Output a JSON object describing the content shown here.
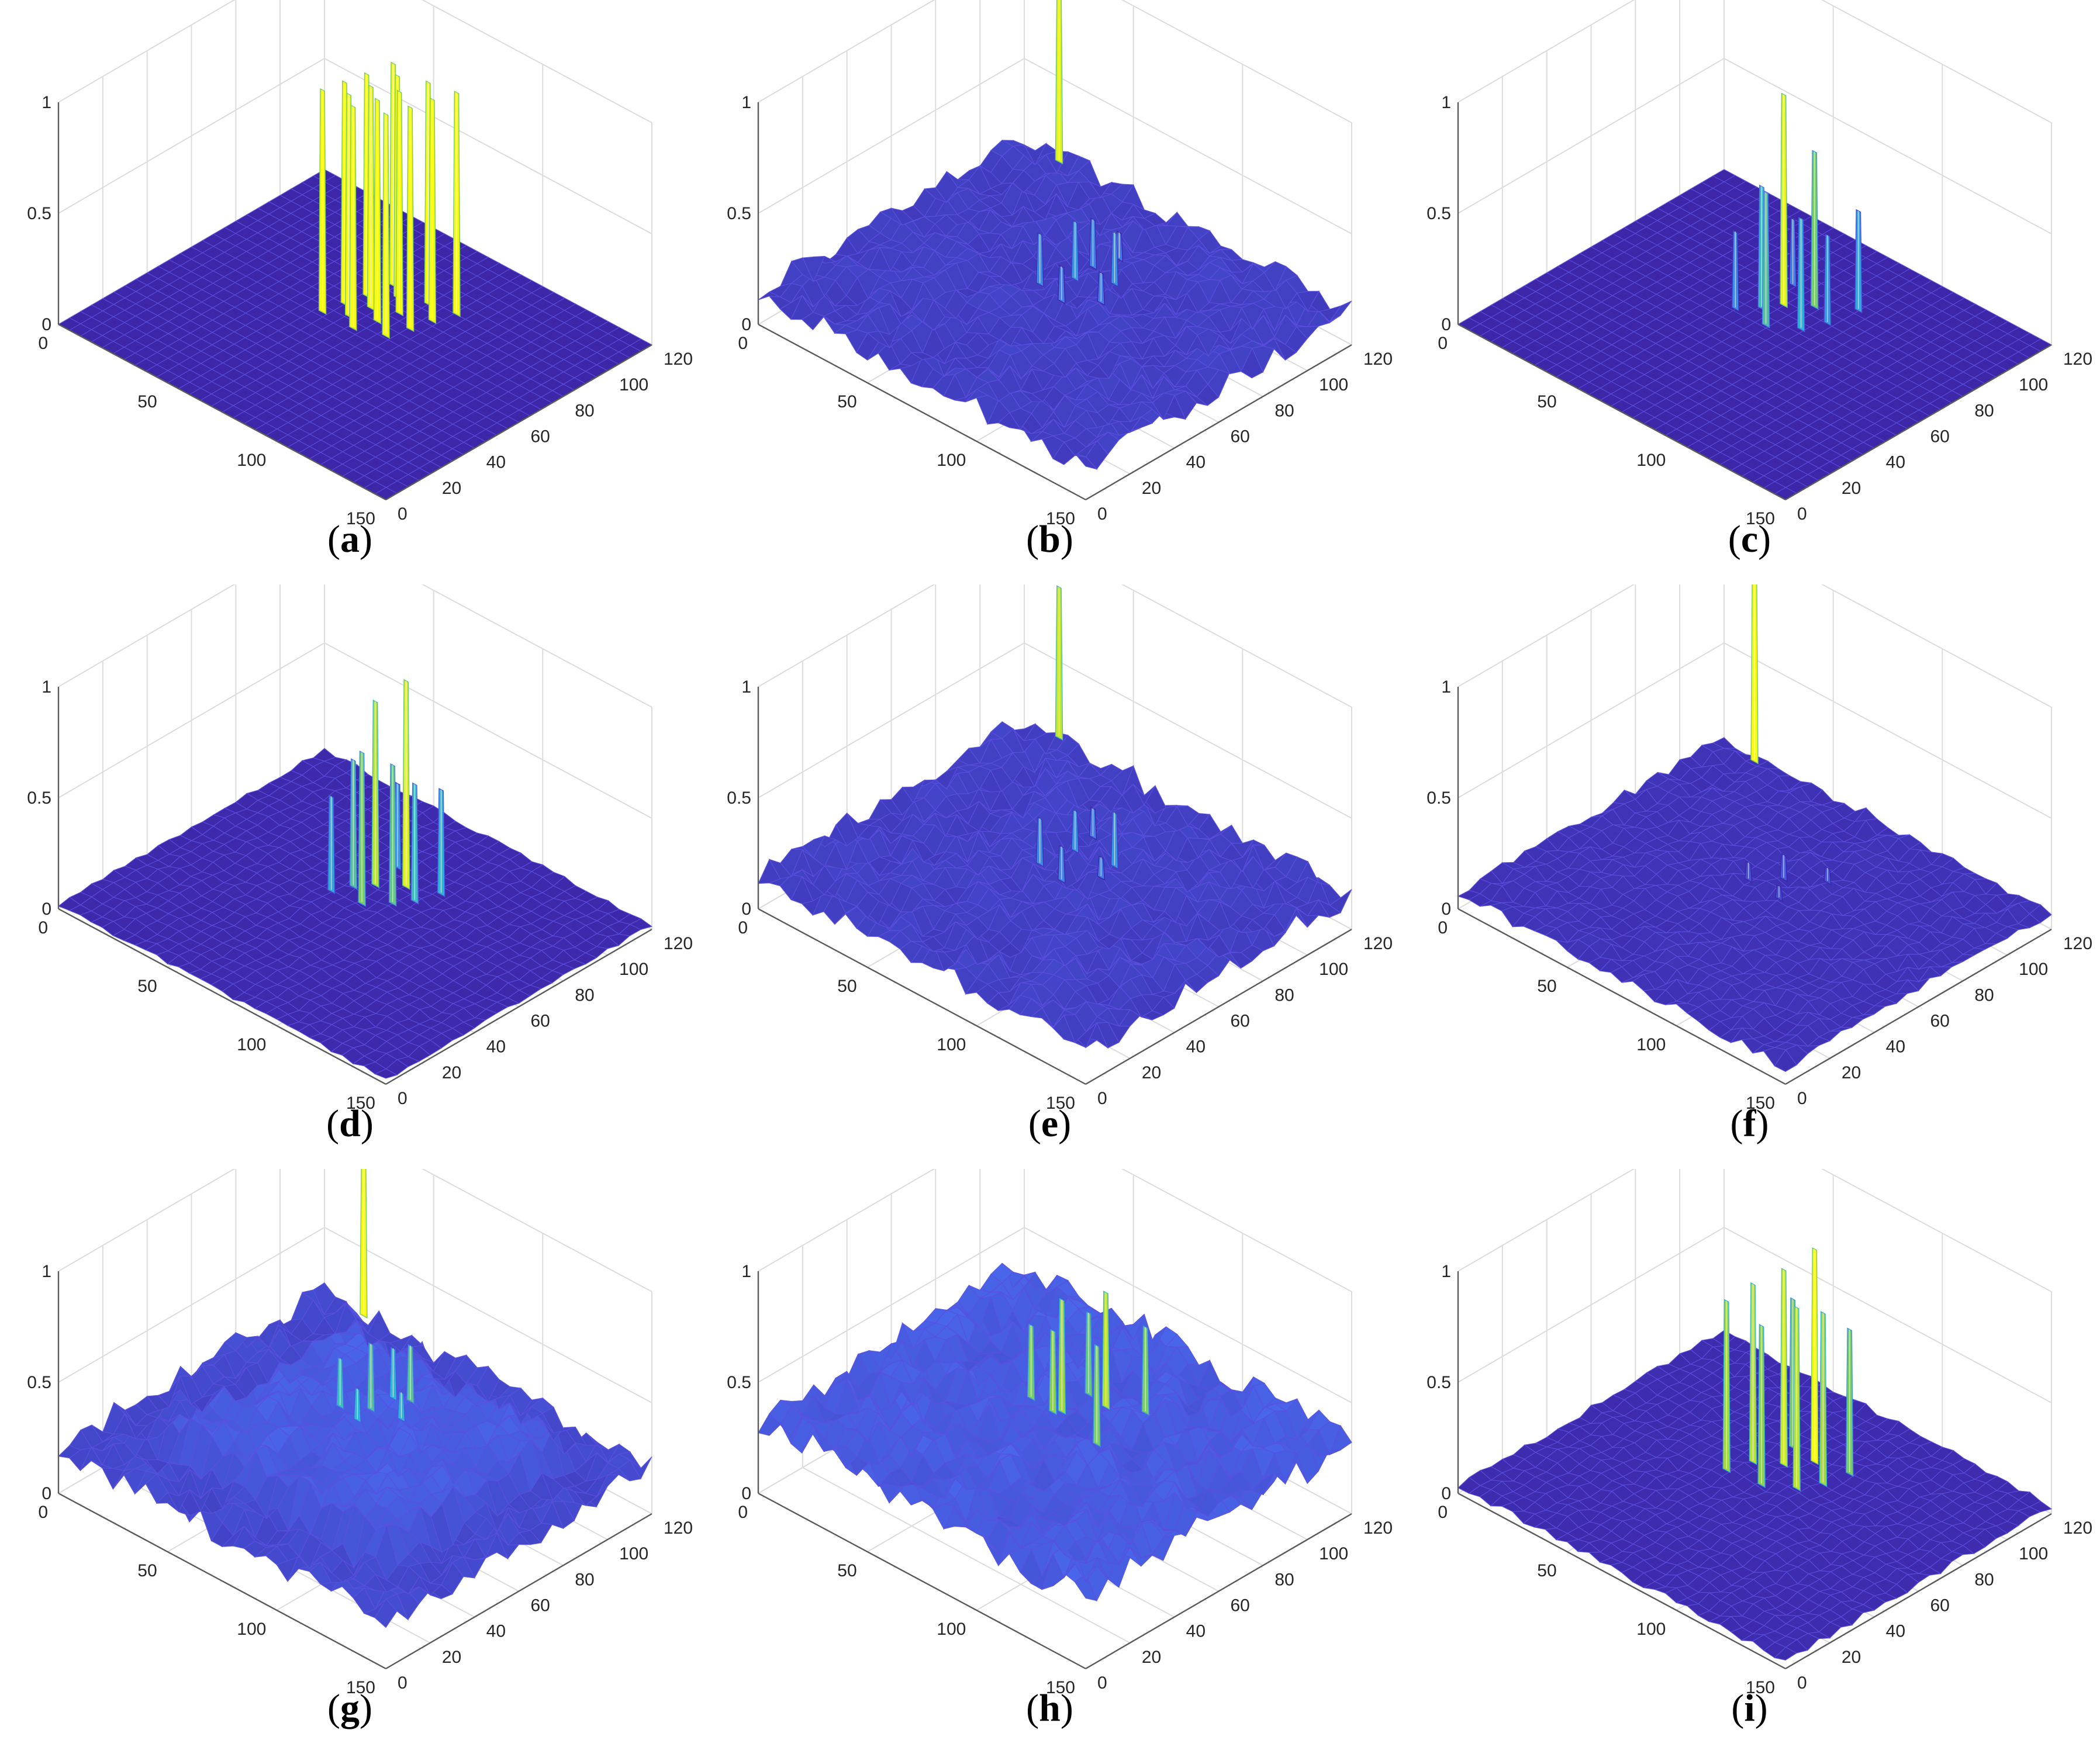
{
  "figure": {
    "layout": {
      "rows": 3,
      "cols": 3
    }
  },
  "colors": {
    "surface_low": "#3d26a8",
    "surface_mid_low": "#4a6cf0",
    "surface_mid": "#2fb6d9",
    "surface_mid_high": "#8fd14a",
    "surface_high": "#f9fb0e",
    "grid": "#dcdcdc",
    "axis": "#5a5a5a"
  },
  "chart_data": [
    {
      "type": "surface",
      "caption": "a",
      "z_ticks": [
        "0",
        "0.5",
        "1"
      ],
      "x_ticks": [
        "0",
        "50",
        "100",
        "150"
      ],
      "y_ticks": [
        "0",
        "20",
        "40",
        "60",
        "80",
        "100",
        "120"
      ],
      "zlim": [
        0,
        1
      ],
      "xlim": [
        0,
        150
      ],
      "ylim": [
        0,
        120
      ],
      "grid": true,
      "background_level": 0.0,
      "noise_amplitude": 0.0,
      "peak_region": {
        "x": [
          55,
          95
        ],
        "y": [
          55,
          95
        ]
      },
      "peaks": [
        {
          "x": 58,
          "y": 62,
          "z": 1.0
        },
        {
          "x": 60,
          "y": 70,
          "z": 1.0
        },
        {
          "x": 62,
          "y": 78,
          "z": 1.0
        },
        {
          "x": 66,
          "y": 66,
          "z": 1.0
        },
        {
          "x": 68,
          "y": 74,
          "z": 1.0
        },
        {
          "x": 70,
          "y": 84,
          "z": 1.0
        },
        {
          "x": 72,
          "y": 62,
          "z": 1.0
        },
        {
          "x": 75,
          "y": 70,
          "z": 1.0
        },
        {
          "x": 77,
          "y": 78,
          "z": 1.0
        },
        {
          "x": 80,
          "y": 88,
          "z": 1.0
        },
        {
          "x": 83,
          "y": 66,
          "z": 1.0
        },
        {
          "x": 86,
          "y": 74,
          "z": 1.0
        },
        {
          "x": 88,
          "y": 82,
          "z": 1.0
        },
        {
          "x": 91,
          "y": 90,
          "z": 1.0
        },
        {
          "x": 64,
          "y": 88,
          "z": 1.0
        }
      ]
    },
    {
      "type": "surface",
      "caption": "b",
      "z_ticks": [
        "0",
        "0.5",
        "1"
      ],
      "x_ticks": [
        "0",
        "50",
        "100",
        "150"
      ],
      "y_ticks": [
        "0",
        "20",
        "40",
        "60",
        "80",
        "100",
        "120"
      ],
      "zlim": [
        0,
        1
      ],
      "xlim": [
        0,
        150
      ],
      "ylim": [
        0,
        120
      ],
      "grid": true,
      "background_level": 0.1,
      "noise_amplitude": 0.1,
      "peaks": [
        {
          "x": 62,
          "y": 66,
          "z": 0.35
        },
        {
          "x": 70,
          "y": 74,
          "z": 0.4
        },
        {
          "x": 76,
          "y": 62,
          "z": 0.3
        },
        {
          "x": 82,
          "y": 80,
          "z": 0.38
        },
        {
          "x": 88,
          "y": 68,
          "z": 0.3
        },
        {
          "x": 66,
          "y": 86,
          "z": 0.32
        },
        {
          "x": 74,
          "y": 90,
          "z": 0.28
        },
        {
          "x": 20,
          "y": 116,
          "z": 0.95
        }
      ]
    },
    {
      "type": "surface",
      "caption": "c",
      "z_ticks": [
        "0",
        "0.5",
        "1"
      ],
      "x_ticks": [
        "0",
        "50",
        "100",
        "150"
      ],
      "y_ticks": [
        "0",
        "20",
        "40",
        "60",
        "80",
        "100",
        "120"
      ],
      "zlim": [
        0,
        1
      ],
      "xlim": [
        0,
        150
      ],
      "ylim": [
        0,
        120
      ],
      "grid": true,
      "background_level": 0.0,
      "noise_amplitude": 0.0,
      "peaks": [
        {
          "x": 60,
          "y": 66,
          "z": 0.35
        },
        {
          "x": 66,
          "y": 72,
          "z": 0.55
        },
        {
          "x": 70,
          "y": 78,
          "z": 0.95
        },
        {
          "x": 74,
          "y": 66,
          "z": 0.6
        },
        {
          "x": 78,
          "y": 84,
          "z": 0.7
        },
        {
          "x": 84,
          "y": 72,
          "z": 0.5
        },
        {
          "x": 88,
          "y": 80,
          "z": 0.4
        },
        {
          "x": 64,
          "y": 88,
          "z": 0.3
        },
        {
          "x": 90,
          "y": 92,
          "z": 0.45
        }
      ]
    },
    {
      "type": "surface",
      "caption": "d",
      "z_ticks": [
        "0",
        "0.5",
        "1"
      ],
      "x_ticks": [
        "0",
        "50",
        "100",
        "150"
      ],
      "y_ticks": [
        "0",
        "20",
        "40",
        "60",
        "80",
        "100",
        "120"
      ],
      "zlim": [
        0,
        1
      ],
      "xlim": [
        0,
        150
      ],
      "ylim": [
        0,
        120
      ],
      "grid": true,
      "background_level": 0.01,
      "noise_amplitude": 0.02,
      "peaks": [
        {
          "x": 60,
          "y": 64,
          "z": 0.45
        },
        {
          "x": 64,
          "y": 70,
          "z": 0.6
        },
        {
          "x": 68,
          "y": 76,
          "z": 0.85
        },
        {
          "x": 72,
          "y": 66,
          "z": 0.7
        },
        {
          "x": 76,
          "y": 82,
          "z": 0.95
        },
        {
          "x": 80,
          "y": 72,
          "z": 0.65
        },
        {
          "x": 84,
          "y": 78,
          "z": 0.55
        },
        {
          "x": 88,
          "y": 86,
          "z": 0.5
        },
        {
          "x": 66,
          "y": 88,
          "z": 0.4
        }
      ]
    },
    {
      "type": "surface",
      "caption": "e",
      "z_ticks": [
        "0",
        "0.5",
        "1"
      ],
      "x_ticks": [
        "0",
        "50",
        "100",
        "150"
      ],
      "y_ticks": [
        "0",
        "20",
        "40",
        "60",
        "80",
        "100",
        "120"
      ],
      "zlim": [
        0,
        1
      ],
      "xlim": [
        0,
        150
      ],
      "ylim": [
        0,
        120
      ],
      "grid": true,
      "background_level": 0.1,
      "noise_amplitude": 0.11,
      "peaks": [
        {
          "x": 62,
          "y": 66,
          "z": 0.35
        },
        {
          "x": 70,
          "y": 74,
          "z": 0.38
        },
        {
          "x": 76,
          "y": 62,
          "z": 0.32
        },
        {
          "x": 82,
          "y": 80,
          "z": 0.4
        },
        {
          "x": 88,
          "y": 68,
          "z": 0.3
        },
        {
          "x": 66,
          "y": 86,
          "z": 0.3
        },
        {
          "x": 20,
          "y": 116,
          "z": 0.88
        }
      ]
    },
    {
      "type": "surface",
      "caption": "f",
      "z_ticks": [
        "0",
        "0.5",
        "1"
      ],
      "x_ticks": [
        "0",
        "50",
        "100",
        "150"
      ],
      "y_ticks": [
        "0",
        "20",
        "40",
        "60",
        "80",
        "100",
        "120"
      ],
      "zlim": [
        0,
        1
      ],
      "xlim": [
        0,
        150
      ],
      "ylim": [
        0,
        120
      ],
      "grid": true,
      "background_level": 0.05,
      "noise_amplitude": 0.05,
      "peaks": [
        {
          "x": 64,
          "y": 68,
          "z": 0.15
        },
        {
          "x": 72,
          "y": 76,
          "z": 0.18
        },
        {
          "x": 80,
          "y": 66,
          "z": 0.14
        },
        {
          "x": 86,
          "y": 82,
          "z": 0.16
        },
        {
          "x": 18,
          "y": 116,
          "z": 1.0
        }
      ]
    },
    {
      "type": "surface",
      "caption": "g",
      "z_ticks": [
        "0",
        "0.5",
        "1"
      ],
      "x_ticks": [
        "0",
        "50",
        "100",
        "150"
      ],
      "y_ticks": [
        "0",
        "20",
        "40",
        "60",
        "80",
        "100",
        "120"
      ],
      "zlim": [
        0,
        1
      ],
      "xlim": [
        0,
        150
      ],
      "ylim": [
        0,
        120
      ],
      "grid": true,
      "background_level": 0.15,
      "noise_amplitude": 0.12,
      "plateau": {
        "x": [
          20,
          130
        ],
        "y": [
          20,
          110
        ],
        "z": 0.35
      },
      "peaks": [
        {
          "x": 62,
          "y": 66,
          "z": 0.55
        },
        {
          "x": 68,
          "y": 74,
          "z": 0.6
        },
        {
          "x": 74,
          "y": 62,
          "z": 0.5
        },
        {
          "x": 80,
          "y": 80,
          "z": 0.62
        },
        {
          "x": 86,
          "y": 70,
          "z": 0.5
        },
        {
          "x": 66,
          "y": 86,
          "z": 0.5
        },
        {
          "x": 22,
          "y": 116,
          "z": 1.0
        }
      ]
    },
    {
      "type": "surface",
      "caption": "h",
      "z_ticks": [
        "0",
        "0.5",
        "1"
      ],
      "x_ticks": [
        "0",
        "50",
        "100",
        "150"
      ],
      "y_ticks": [
        "0",
        "20",
        "40",
        "60",
        "80",
        "100",
        "120"
      ],
      "zlim": [
        0,
        1
      ],
      "xlim": [
        0,
        150
      ],
      "ylim": [
        0,
        120
      ],
      "grid": true,
      "background_level": 0.25,
      "noise_amplitude": 0.15,
      "peaks": [
        {
          "x": 60,
          "y": 64,
          "z": 0.7
        },
        {
          "x": 66,
          "y": 72,
          "z": 0.8
        },
        {
          "x": 72,
          "y": 62,
          "z": 0.75
        },
        {
          "x": 78,
          "y": 80,
          "z": 0.85
        },
        {
          "x": 84,
          "y": 70,
          "z": 0.7
        },
        {
          "x": 64,
          "y": 86,
          "z": 0.65
        },
        {
          "x": 88,
          "y": 88,
          "z": 0.7
        }
      ]
    },
    {
      "type": "surface",
      "caption": "i",
      "z_ticks": [
        "0",
        "0.5",
        "1"
      ],
      "x_ticks": [
        "0",
        "50",
        "100",
        "150"
      ],
      "y_ticks": [
        "0",
        "20",
        "40",
        "60",
        "80",
        "100",
        "120"
      ],
      "zlim": [
        0,
        1
      ],
      "xlim": [
        0,
        150
      ],
      "ylim": [
        0,
        120
      ],
      "grid": true,
      "background_level": 0.02,
      "noise_amplitude": 0.03,
      "peaks": [
        {
          "x": 58,
          "y": 64,
          "z": 0.8
        },
        {
          "x": 62,
          "y": 72,
          "z": 0.85
        },
        {
          "x": 68,
          "y": 80,
          "z": 0.9
        },
        {
          "x": 72,
          "y": 66,
          "z": 0.75
        },
        {
          "x": 76,
          "y": 86,
          "z": 1.0
        },
        {
          "x": 82,
          "y": 72,
          "z": 0.85
        },
        {
          "x": 86,
          "y": 80,
          "z": 0.8
        },
        {
          "x": 90,
          "y": 88,
          "z": 0.7
        },
        {
          "x": 64,
          "y": 88,
          "z": 0.7
        }
      ]
    }
  ]
}
